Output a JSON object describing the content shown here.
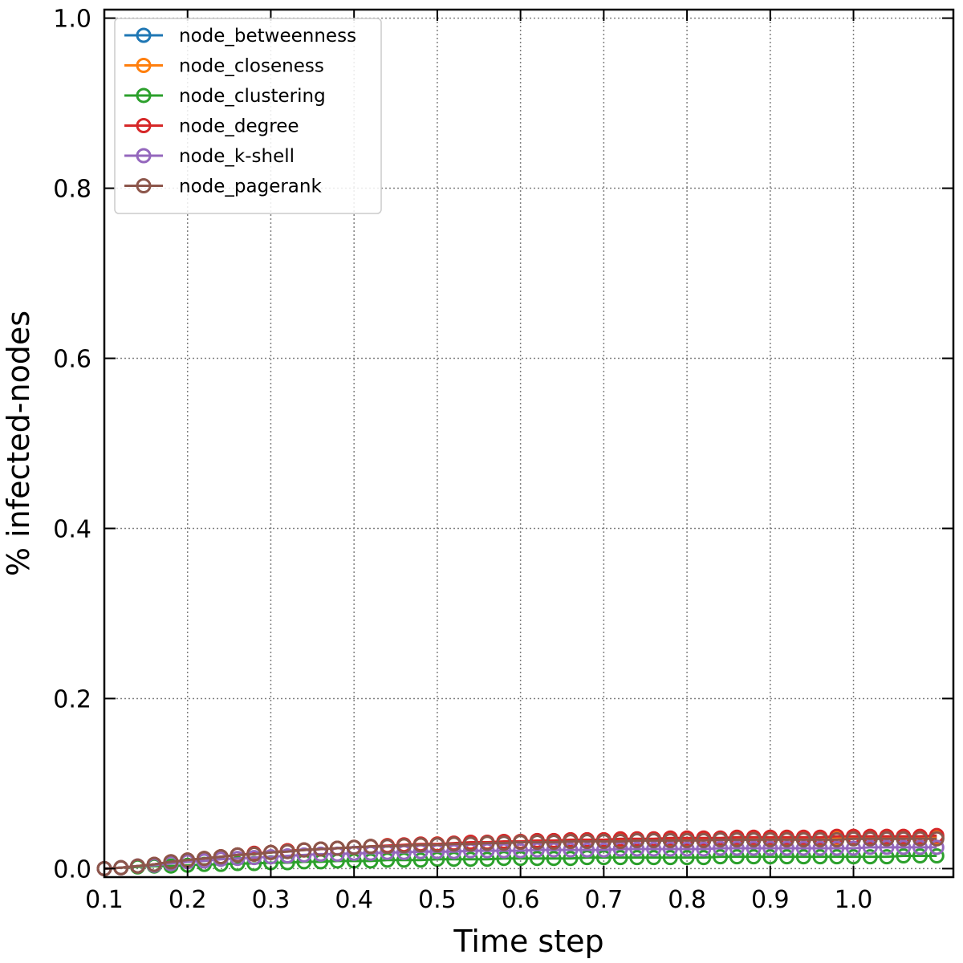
{
  "chart_data": {
    "type": "line",
    "title": "",
    "xlabel": "Time step",
    "ylabel": "% infected-nodes",
    "xlim": [
      0.1,
      1.12
    ],
    "ylim": [
      -0.01,
      1.01
    ],
    "xticks": [
      0.1,
      0.2,
      0.3,
      0.4,
      0.5,
      0.6,
      0.7,
      0.8,
      0.9,
      1.0
    ],
    "xtick_labels": [
      "0.1",
      "0.2",
      "0.3",
      "0.4",
      "0.5",
      "0.6",
      "0.7",
      "0.8",
      "0.9",
      "1.0"
    ],
    "yticks": [
      0.0,
      0.2,
      0.4,
      0.6,
      0.8,
      1.0
    ],
    "ytick_labels": [
      "0.0",
      "0.2",
      "0.4",
      "0.6",
      "0.8",
      "1.0"
    ],
    "grid": true,
    "legend_position": "top-left",
    "marker": "hollow-circle",
    "x": [
      0.1,
      0.12,
      0.14,
      0.16,
      0.18,
      0.2,
      0.22,
      0.24,
      0.26,
      0.28,
      0.3,
      0.32,
      0.34,
      0.36,
      0.38,
      0.4,
      0.42,
      0.44,
      0.46,
      0.48,
      0.5,
      0.52,
      0.54,
      0.56,
      0.58,
      0.6,
      0.62,
      0.64,
      0.66,
      0.68,
      0.7,
      0.72,
      0.74,
      0.76,
      0.78,
      0.8,
      0.82,
      0.84,
      0.86,
      0.88,
      0.9,
      0.92,
      0.94,
      0.96,
      0.98,
      1.0,
      1.02,
      1.04,
      1.06,
      1.08,
      1.1
    ],
    "series": [
      {
        "name": "node_betweenness",
        "color": "#1f77b4",
        "values": [
          0.0,
          0.001,
          0.003,
          0.005,
          0.008,
          0.01,
          0.012,
          0.014,
          0.016,
          0.017,
          0.019,
          0.021,
          0.022,
          0.023,
          0.024,
          0.025,
          0.026,
          0.026,
          0.027,
          0.028,
          0.028,
          0.029,
          0.029,
          0.03,
          0.03,
          0.031,
          0.031,
          0.031,
          0.032,
          0.032,
          0.032,
          0.033,
          0.033,
          0.033,
          0.033,
          0.034,
          0.034,
          0.034,
          0.034,
          0.034,
          0.035,
          0.035,
          0.035,
          0.035,
          0.035,
          0.035,
          0.035,
          0.035,
          0.035,
          0.036,
          0.036
        ]
      },
      {
        "name": "node_closeness",
        "color": "#ff7f0e",
        "values": [
          0.0,
          0.001,
          0.003,
          0.005,
          0.008,
          0.01,
          0.012,
          0.014,
          0.016,
          0.017,
          0.019,
          0.021,
          0.022,
          0.023,
          0.024,
          0.025,
          0.026,
          0.027,
          0.027,
          0.028,
          0.029,
          0.029,
          0.03,
          0.03,
          0.031,
          0.031,
          0.032,
          0.032,
          0.032,
          0.033,
          0.033,
          0.033,
          0.034,
          0.034,
          0.034,
          0.034,
          0.035,
          0.035,
          0.035,
          0.035,
          0.035,
          0.036,
          0.036,
          0.036,
          0.036,
          0.036,
          0.036,
          0.036,
          0.037,
          0.037,
          0.037
        ]
      },
      {
        "name": "node_clustering",
        "color": "#2ca02c",
        "values": [
          0.0,
          0.001,
          0.002,
          0.003,
          0.003,
          0.004,
          0.005,
          0.005,
          0.006,
          0.006,
          0.007,
          0.007,
          0.008,
          0.008,
          0.009,
          0.009,
          0.009,
          0.01,
          0.01,
          0.01,
          0.011,
          0.011,
          0.011,
          0.011,
          0.012,
          0.012,
          0.012,
          0.012,
          0.012,
          0.013,
          0.013,
          0.013,
          0.013,
          0.013,
          0.013,
          0.013,
          0.013,
          0.014,
          0.014,
          0.014,
          0.014,
          0.014,
          0.014,
          0.014,
          0.014,
          0.014,
          0.014,
          0.014,
          0.015,
          0.015,
          0.015
        ]
      },
      {
        "name": "node_degree",
        "color": "#d62728",
        "values": [
          0.0,
          0.001,
          0.003,
          0.005,
          0.008,
          0.01,
          0.012,
          0.014,
          0.016,
          0.018,
          0.019,
          0.021,
          0.022,
          0.023,
          0.024,
          0.025,
          0.026,
          0.027,
          0.028,
          0.029,
          0.029,
          0.03,
          0.031,
          0.031,
          0.032,
          0.032,
          0.033,
          0.033,
          0.034,
          0.034,
          0.034,
          0.035,
          0.035,
          0.035,
          0.036,
          0.036,
          0.036,
          0.036,
          0.037,
          0.037,
          0.037,
          0.037,
          0.037,
          0.037,
          0.038,
          0.038,
          0.038,
          0.038,
          0.038,
          0.038,
          0.039
        ]
      },
      {
        "name": "node_k-shell",
        "color": "#9467bd",
        "values": [
          0.0,
          0.001,
          0.003,
          0.004,
          0.006,
          0.008,
          0.009,
          0.011,
          0.012,
          0.013,
          0.014,
          0.015,
          0.016,
          0.017,
          0.017,
          0.018,
          0.018,
          0.019,
          0.019,
          0.02,
          0.02,
          0.02,
          0.021,
          0.021,
          0.021,
          0.021,
          0.022,
          0.022,
          0.022,
          0.022,
          0.022,
          0.023,
          0.023,
          0.023,
          0.023,
          0.023,
          0.023,
          0.024,
          0.024,
          0.024,
          0.024,
          0.024,
          0.024,
          0.024,
          0.024,
          0.024,
          0.025,
          0.025,
          0.025,
          0.025,
          0.025
        ]
      },
      {
        "name": "node_pagerank",
        "color": "#8c564b",
        "values": [
          0.0,
          0.001,
          0.003,
          0.005,
          0.008,
          0.01,
          0.012,
          0.014,
          0.016,
          0.017,
          0.019,
          0.02,
          0.022,
          0.023,
          0.024,
          0.025,
          0.026,
          0.026,
          0.027,
          0.028,
          0.028,
          0.029,
          0.029,
          0.03,
          0.03,
          0.031,
          0.031,
          0.031,
          0.032,
          0.032,
          0.032,
          0.032,
          0.033,
          0.033,
          0.033,
          0.033,
          0.033,
          0.034,
          0.034,
          0.034,
          0.034,
          0.034,
          0.034,
          0.034,
          0.034,
          0.035,
          0.035,
          0.035,
          0.035,
          0.035,
          0.035
        ]
      }
    ]
  }
}
